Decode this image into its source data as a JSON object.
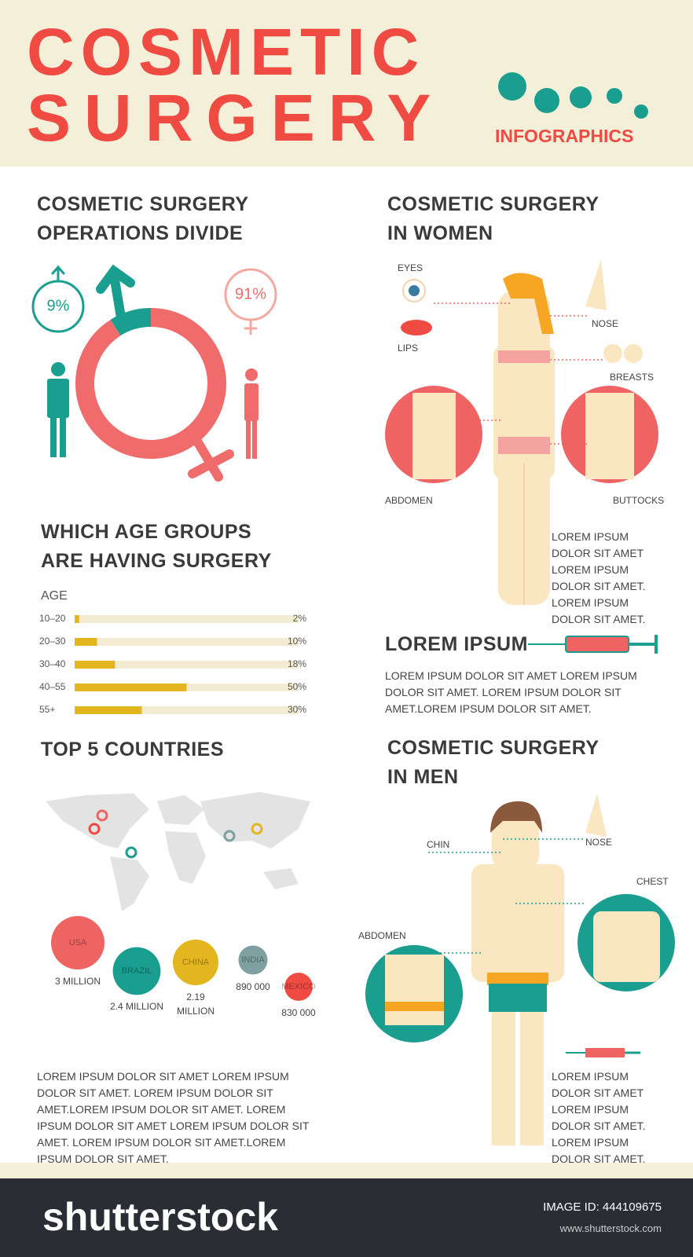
{
  "header": {
    "title_line1": "COSMETIC",
    "title_line2": "SURGERY",
    "subtitle": "INFOGRAPHICS"
  },
  "chart_data": [
    {
      "type": "pie",
      "title": [
        "COSMETIC SURGERY",
        "OPERATIONS DIVIDE"
      ],
      "values": [
        9,
        91
      ],
      "value_labels": [
        "9%",
        "91%"
      ],
      "colors": [
        "#1a9e8f",
        "#f06b6b"
      ]
    },
    {
      "type": "bar",
      "title": [
        "WHICH AGE GROUPS",
        "ARE HAVING SURGERY"
      ],
      "axis_label": "AGE",
      "categories": [
        "10–20",
        "20–30",
        "30–40",
        "40–55",
        "55+"
      ],
      "values": [
        2,
        10,
        18,
        50,
        30
      ],
      "value_labels": [
        "2%",
        "10%",
        "18%",
        "50%",
        "30%"
      ],
      "xlim": [
        0,
        100
      ],
      "color": "#e3b51f"
    },
    {
      "type": "bubble",
      "title": "TOP 5 COUNTRIES",
      "categories": [
        "USA",
        "BRAZIL",
        "CHINA",
        "INDIA",
        "MEXICO"
      ],
      "values": [
        3000000,
        2400000,
        2190000,
        890000,
        830000
      ],
      "value_labels": [
        "3 MILLION",
        "2.4 MILLION",
        "2.19 MILLION",
        "890 000",
        "830 000"
      ],
      "colors": [
        "#f06363",
        "#1a9e8f",
        "#e3b51f",
        "#7fa0a0",
        "#ef4b43"
      ]
    }
  ],
  "countries_text": "LOREM IPSUM DOLOR SIT AMET LOREM IPSUM DOLOR SIT AMET. LOREM IPSUM DOLOR SIT AMET.LOREM IPSUM DOLOR SIT AMET. LOREM IPSUM DOLOR SIT AMET LOREM IPSUM DOLOR SIT AMET. LOREM IPSUM DOLOR SIT AMET.LOREM IPSUM DOLOR SIT AMET.",
  "women": {
    "title": [
      "COSMETIC SURGERY",
      "IN WOMEN"
    ],
    "labels": {
      "eyes": "EYES",
      "lips": "LIPS",
      "nose": "NOSE",
      "breasts": "BREASTS",
      "abdomen": "ABDOMEN",
      "buttocks": "BUTTOCKS"
    },
    "text": "LOREM IPSUM DOLOR SIT AMET LOREM IPSUM DOLOR SIT AMET. LOREM IPSUM DOLOR SIT AMET."
  },
  "lorem": {
    "title": "LOREM IPSUM",
    "text": "LOREM IPSUM DOLOR SIT AMET LOREM IPSUM DOLOR SIT AMET. LOREM IPSUM DOLOR SIT AMET.LOREM IPSUM DOLOR SIT AMET."
  },
  "men": {
    "title": [
      "COSMETIC SURGERY",
      "IN MEN"
    ],
    "labels": {
      "chin": "CHIN",
      "nose": "NOSE",
      "chest": "CHEST",
      "abdomen": "ABDOMEN"
    },
    "text": "LOREM IPSUM DOLOR SIT AMET LOREM IPSUM DOLOR SIT AMET. LOREM IPSUM DOLOR SIT AMET."
  },
  "footer": {
    "logo": "shutterstock",
    "image_id": "IMAGE ID: 444109675",
    "url": "www.shutterstock.com"
  }
}
